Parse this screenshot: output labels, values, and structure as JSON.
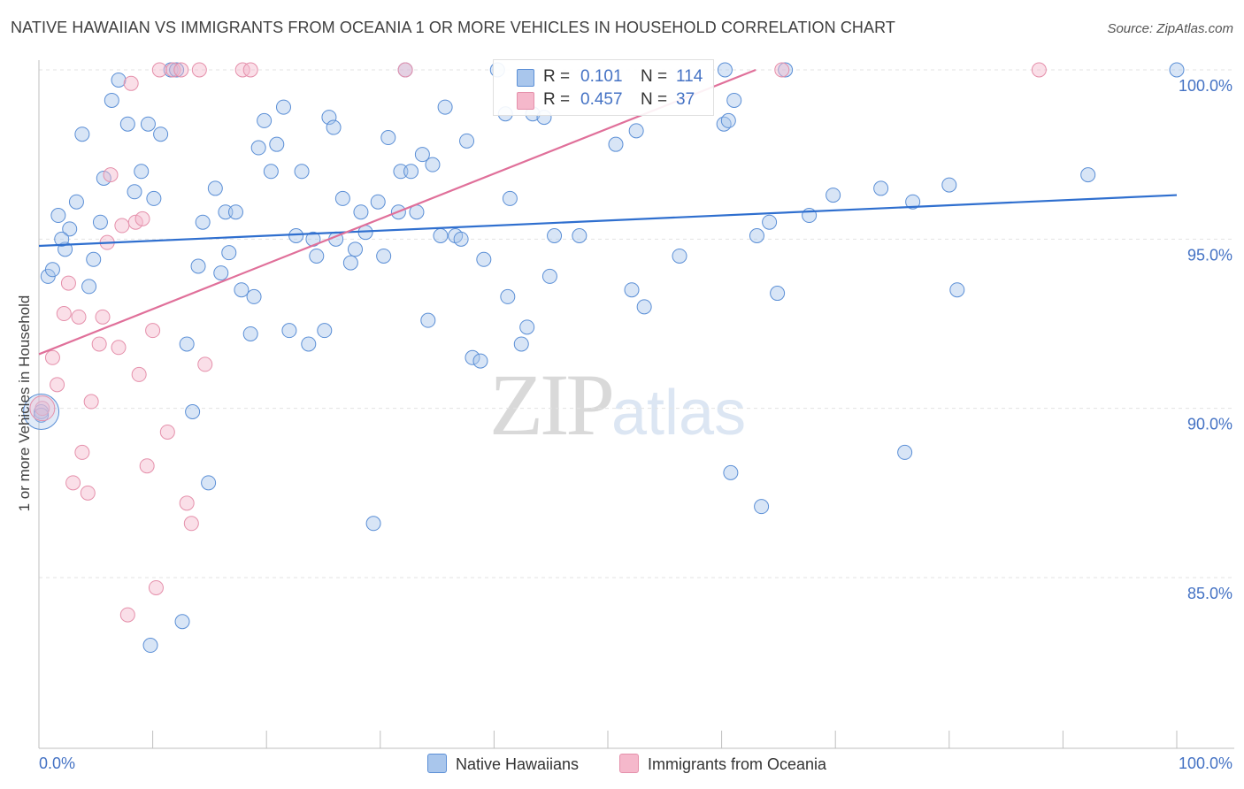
{
  "title": "NATIVE HAWAIIAN VS IMMIGRANTS FROM OCEANIA 1 OR MORE VEHICLES IN HOUSEHOLD CORRELATION CHART",
  "source": "Source: ZipAtlas.com",
  "watermark": {
    "zip": "ZIP",
    "atlas": "atlas"
  },
  "legend_top": {
    "rows": [
      {
        "r_label": "R =",
        "r_value": "0.101",
        "n_label": "N =",
        "n_value": "114"
      },
      {
        "r_label": "R =",
        "r_value": "0.457",
        "n_label": "N =",
        "n_value": "37"
      }
    ]
  },
  "chart_data": {
    "type": "scatter",
    "title": "NATIVE HAWAIIAN VS IMMIGRANTS FROM OCEANIA 1 OR MORE VEHICLES IN HOUSEHOLD CORRELATION CHART",
    "xlabel": "",
    "ylabel": "1 or more Vehicles in Household",
    "xlim": [
      0,
      100
    ],
    "ylim": [
      80.2,
      100.7
    ],
    "x_tick_labels": [
      "0.0%",
      "100.0%"
    ],
    "y_ticks": [
      85,
      90,
      95,
      100
    ],
    "y_tick_labels": [
      "85.0%",
      "90.0%",
      "95.0%",
      "100.0%"
    ],
    "grid": true,
    "colors": {
      "blue_fill": "#a9c6ec",
      "blue_stroke": "#5b8fd6",
      "blue_line": "#2f6fcf",
      "pink_fill": "#f5b8cb",
      "pink_stroke": "#e590ab",
      "pink_line": "#e0709a"
    },
    "series": [
      {
        "name": "Native Hawaiians",
        "r": 0.101,
        "n": 114,
        "trend": {
          "x": [
            0,
            100
          ],
          "y": [
            94.8,
            96.3
          ]
        },
        "points": [
          [
            0.2,
            89.9
          ],
          [
            0.8,
            93.9
          ],
          [
            1.2,
            94.1
          ],
          [
            1.7,
            95.7
          ],
          [
            2.3,
            94.7
          ],
          [
            2.7,
            95.3
          ],
          [
            3.3,
            96.1
          ],
          [
            3.8,
            98.1
          ],
          [
            4.4,
            93.6
          ],
          [
            4.8,
            94.4
          ],
          [
            5.4,
            95.5
          ],
          [
            5.7,
            96.8
          ],
          [
            6.4,
            99.1
          ],
          [
            7.0,
            99.7
          ],
          [
            7.8,
            98.4
          ],
          [
            8.4,
            96.4
          ],
          [
            9.0,
            97.0
          ],
          [
            9.6,
            98.4
          ],
          [
            10.1,
            96.2
          ],
          [
            10.7,
            98.1
          ],
          [
            11.6,
            100.0
          ],
          [
            12.1,
            100.0
          ],
          [
            13.0,
            91.9
          ],
          [
            13.5,
            89.9
          ],
          [
            14.0,
            94.2
          ],
          [
            14.4,
            95.5
          ],
          [
            14.9,
            87.8
          ],
          [
            15.5,
            96.5
          ],
          [
            16.0,
            94.0
          ],
          [
            16.4,
            95.8
          ],
          [
            16.7,
            94.6
          ],
          [
            17.3,
            95.8
          ],
          [
            17.8,
            93.5
          ],
          [
            18.6,
            92.2
          ],
          [
            18.9,
            93.3
          ],
          [
            19.3,
            97.7
          ],
          [
            19.8,
            98.5
          ],
          [
            20.4,
            97.0
          ],
          [
            20.9,
            97.8
          ],
          [
            21.5,
            98.9
          ],
          [
            22.0,
            92.3
          ],
          [
            22.6,
            95.1
          ],
          [
            23.1,
            97.0
          ],
          [
            23.7,
            91.9
          ],
          [
            24.1,
            95.0
          ],
          [
            24.4,
            94.5
          ],
          [
            25.1,
            92.3
          ],
          [
            25.5,
            98.6
          ],
          [
            25.9,
            98.3
          ],
          [
            26.1,
            95.0
          ],
          [
            26.7,
            96.2
          ],
          [
            27.4,
            94.3
          ],
          [
            27.8,
            94.7
          ],
          [
            28.3,
            95.8
          ],
          [
            28.7,
            95.2
          ],
          [
            29.4,
            86.6
          ],
          [
            29.8,
            96.1
          ],
          [
            30.3,
            94.5
          ],
          [
            30.7,
            98.0
          ],
          [
            31.6,
            95.8
          ],
          [
            31.8,
            97.0
          ],
          [
            32.2,
            100.0
          ],
          [
            32.7,
            97.0
          ],
          [
            33.2,
            95.8
          ],
          [
            33.7,
            97.5
          ],
          [
            34.2,
            92.6
          ],
          [
            34.6,
            97.2
          ],
          [
            35.3,
            95.1
          ],
          [
            35.7,
            98.9
          ],
          [
            36.6,
            95.1
          ],
          [
            37.1,
            95.0
          ],
          [
            37.6,
            97.9
          ],
          [
            38.1,
            91.5
          ],
          [
            38.8,
            91.4
          ],
          [
            39.1,
            94.4
          ],
          [
            40.3,
            100.0
          ],
          [
            41.0,
            98.7
          ],
          [
            41.2,
            93.3
          ],
          [
            41.4,
            96.2
          ],
          [
            42.4,
            91.9
          ],
          [
            42.9,
            92.4
          ],
          [
            43.4,
            98.7
          ],
          [
            44.4,
            98.6
          ],
          [
            44.9,
            93.9
          ],
          [
            45.3,
            95.1
          ],
          [
            47.5,
            95.1
          ],
          [
            50.7,
            97.8
          ],
          [
            52.1,
            93.5
          ],
          [
            52.5,
            98.2
          ],
          [
            53.2,
            93.0
          ],
          [
            56.3,
            94.5
          ],
          [
            60.3,
            100.0
          ],
          [
            60.2,
            98.4
          ],
          [
            60.6,
            98.5
          ],
          [
            60.8,
            88.1
          ],
          [
            61.1,
            99.1
          ],
          [
            63.1,
            95.1
          ],
          [
            63.5,
            87.1
          ],
          [
            64.2,
            95.5
          ],
          [
            64.9,
            93.4
          ],
          [
            65.6,
            100.0
          ],
          [
            67.7,
            95.7
          ],
          [
            69.8,
            96.3
          ],
          [
            74.0,
            96.5
          ],
          [
            76.1,
            88.7
          ],
          [
            76.8,
            96.1
          ],
          [
            80.0,
            96.6
          ],
          [
            80.7,
            93.5
          ],
          [
            92.2,
            96.9
          ],
          [
            100.0,
            100.0
          ],
          [
            9.8,
            83.0
          ],
          [
            12.6,
            83.7
          ],
          [
            0.2,
            89.8
          ],
          [
            2.0,
            95.0
          ]
        ]
      },
      {
        "name": "Immigrants from Oceania",
        "r": 0.457,
        "n": 37,
        "trend": {
          "x": [
            0,
            63.0
          ],
          "y": [
            91.6,
            100.0
          ]
        },
        "points": [
          [
            0.3,
            90.0
          ],
          [
            1.2,
            91.5
          ],
          [
            1.6,
            90.7
          ],
          [
            2.2,
            92.8
          ],
          [
            2.6,
            93.7
          ],
          [
            3.0,
            87.8
          ],
          [
            3.5,
            92.7
          ],
          [
            3.8,
            88.7
          ],
          [
            4.3,
            87.5
          ],
          [
            4.6,
            90.2
          ],
          [
            5.3,
            91.9
          ],
          [
            5.6,
            92.7
          ],
          [
            6.0,
            94.9
          ],
          [
            6.3,
            96.9
          ],
          [
            7.0,
            91.8
          ],
          [
            7.3,
            95.4
          ],
          [
            8.1,
            99.6
          ],
          [
            8.5,
            95.5
          ],
          [
            8.8,
            91.0
          ],
          [
            9.1,
            95.6
          ],
          [
            9.5,
            88.3
          ],
          [
            10.0,
            92.3
          ],
          [
            10.3,
            84.7
          ],
          [
            10.6,
            100.0
          ],
          [
            11.3,
            89.3
          ],
          [
            11.8,
            100.0
          ],
          [
            12.5,
            100.0
          ],
          [
            13.0,
            87.2
          ],
          [
            13.4,
            86.6
          ],
          [
            14.1,
            100.0
          ],
          [
            14.6,
            91.3
          ],
          [
            17.9,
            100.0
          ],
          [
            18.6,
            100.0
          ],
          [
            32.2,
            100.0
          ],
          [
            65.3,
            100.0
          ],
          [
            87.9,
            100.0
          ],
          [
            7.8,
            83.9
          ]
        ]
      }
    ]
  },
  "legend_bottom": [
    {
      "label": "Native Hawaiians"
    },
    {
      "label": "Immigrants from Oceania"
    }
  ]
}
